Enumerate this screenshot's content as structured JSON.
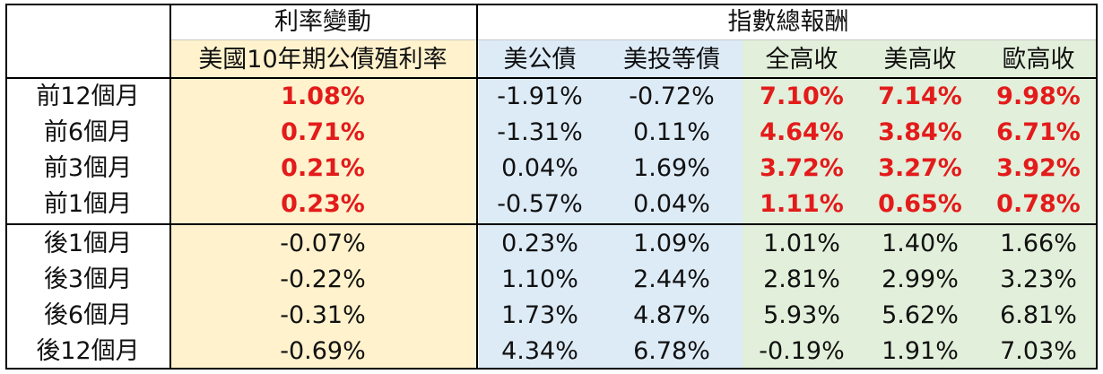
{
  "header": {
    "group_rate": "利率變動",
    "group_return": "指數總報酬",
    "columns": [
      "美國10年期公債殖利率",
      "美公債",
      "美投等債",
      "全高收",
      "美高收",
      "歐高收"
    ]
  },
  "rows": [
    {
      "label": "前12個月",
      "values": [
        "1.08%",
        "-1.91%",
        "-0.72%",
        "7.10%",
        "7.14%",
        "9.98%"
      ]
    },
    {
      "label": "前6個月",
      "values": [
        "0.71%",
        "-1.31%",
        "0.11%",
        "4.64%",
        "3.84%",
        "6.71%"
      ]
    },
    {
      "label": "前3個月",
      "values": [
        "0.21%",
        "0.04%",
        "1.69%",
        "3.72%",
        "3.27%",
        "3.92%"
      ]
    },
    {
      "label": "前1個月",
      "values": [
        "0.23%",
        "-0.57%",
        "0.04%",
        "1.11%",
        "0.65%",
        "0.78%"
      ]
    },
    {
      "label": "後1個月",
      "values": [
        "-0.07%",
        "0.23%",
        "1.09%",
        "1.01%",
        "1.40%",
        "1.66%"
      ]
    },
    {
      "label": "後3個月",
      "values": [
        "-0.22%",
        "1.10%",
        "2.44%",
        "2.81%",
        "2.99%",
        "3.23%"
      ]
    },
    {
      "label": "後6個月",
      "values": [
        "-0.31%",
        "1.73%",
        "4.87%",
        "5.93%",
        "5.62%",
        "6.81%"
      ]
    },
    {
      "label": "後12個月",
      "values": [
        "-0.69%",
        "4.34%",
        "6.78%",
        "-0.19%",
        "1.91%",
        "7.03%"
      ]
    }
  ],
  "colors": {
    "highlight_red": "#e31b1b",
    "yellow": "#fff2cc",
    "blue": "#ddebf7",
    "green": "#e2efda"
  }
}
